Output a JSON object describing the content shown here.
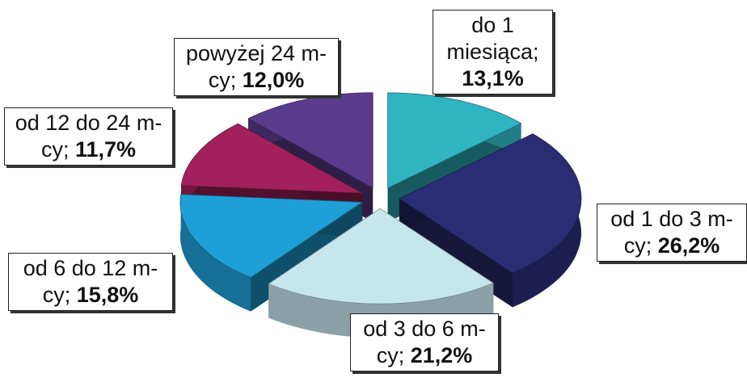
{
  "chart_data": {
    "type": "pie3d",
    "categories": [
      "do 1 miesiąca;",
      "od 1 do 3 m-cy;",
      "od 3 do 6 m-cy;",
      "od 6 do 12 m-cy;",
      "od 12 do 24 m-cy;",
      "powyżej 24 m-cy;"
    ],
    "values": [
      13.1,
      26.2,
      21.2,
      15.8,
      11.7,
      12.0
    ],
    "value_labels": [
      "13,1%",
      "26,2%",
      "21,2%",
      "15,8%",
      "11,7%",
      "12,0%"
    ],
    "colors": [
      "#2fb4c2",
      "#2b2d72",
      "#c6e6ee",
      "#1e9fd6",
      "#a2215c",
      "#5b3b8c"
    ]
  }
}
